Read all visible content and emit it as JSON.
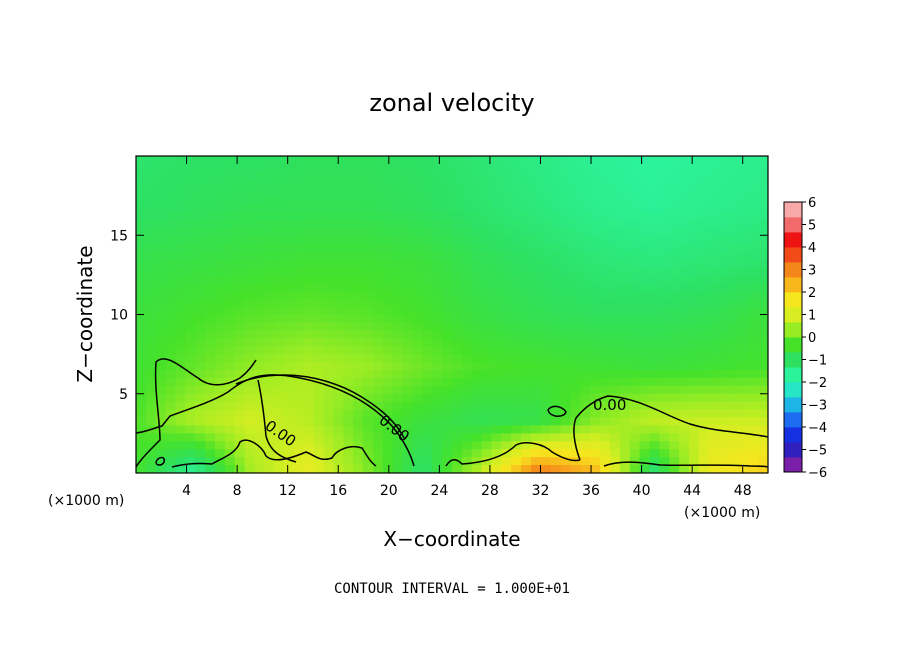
{
  "chart_data": {
    "type": "heatmap",
    "title": "zonal velocity",
    "xlabel": "X−coordinate",
    "ylabel": "Z−coordinate",
    "x_unit_label": "(×1000 m)",
    "xlim": [
      0,
      50
    ],
    "ylim": [
      0,
      20
    ],
    "x_ticks": [
      4,
      8,
      12,
      16,
      20,
      24,
      28,
      32,
      36,
      40,
      44,
      48
    ],
    "y_ticks": [
      5,
      10,
      15
    ],
    "colorbar": {
      "ticks": [
        6,
        5,
        4,
        3,
        2,
        1,
        0,
        -1,
        -2,
        -3,
        -4,
        -5,
        -6
      ],
      "tick_labels": [
        "6",
        "5",
        "4",
        "3",
        "2",
        "1",
        "0",
        "−1",
        "−2",
        "−3",
        "−4",
        "−5",
        "−6"
      ],
      "range": [
        -6,
        6
      ],
      "colors": [
        "#7a1fa8",
        "#2f1fbf",
        "#1530e0",
        "#1c6cf0",
        "#1fb4e8",
        "#27e6c8",
        "#2cf29a",
        "#2de060",
        "#46e22a",
        "#98ec24",
        "#d8ee22",
        "#f6e61e",
        "#f8b81c",
        "#f5861a",
        "#f24a18",
        "#ee1414",
        "#f26a6a",
        "#f7a8a8"
      ]
    },
    "contour_label": "0.00",
    "contour_interval_text": "CONTOUR INTERVAL = 1.000E+01",
    "values_z_rows_top_to_bottom": [
      [
        -1.2,
        -1.1,
        -1.1,
        -1.0,
        -1.0,
        -1.1,
        -1.3,
        -1.5,
        -1.7,
        -1.8,
        -1.7,
        -1.6
      ],
      [
        -1.1,
        -1.0,
        -0.9,
        -0.9,
        -0.9,
        -1.0,
        -1.2,
        -1.4,
        -1.6,
        -1.7,
        -1.6,
        -1.5
      ],
      [
        -0.8,
        -0.7,
        -0.6,
        -0.5,
        -0.5,
        -0.6,
        -0.9,
        -1.1,
        -1.3,
        -1.4,
        -1.3,
        -1.2
      ],
      [
        -0.6,
        -0.4,
        -0.2,
        -0.1,
        -0.2,
        -0.4,
        -0.7,
        -0.9,
        -1.0,
        -1.0,
        -0.9,
        -0.6
      ],
      [
        -0.5,
        -0.1,
        0.3,
        0.6,
        0.4,
        0.0,
        -0.3,
        -0.4,
        -0.5,
        -0.6,
        -0.5,
        -0.4
      ],
      [
        -0.3,
        0.6,
        1.0,
        0.7,
        -0.2,
        -0.6,
        -0.9,
        -0.8,
        0.2,
        0.8,
        0.9,
        0.9
      ],
      [
        -0.4,
        -1.8,
        0.5,
        1.4,
        0.2,
        -1.2,
        0.8,
        3.5,
        2.5,
        -1.4,
        1.6,
        2.2
      ]
    ]
  }
}
